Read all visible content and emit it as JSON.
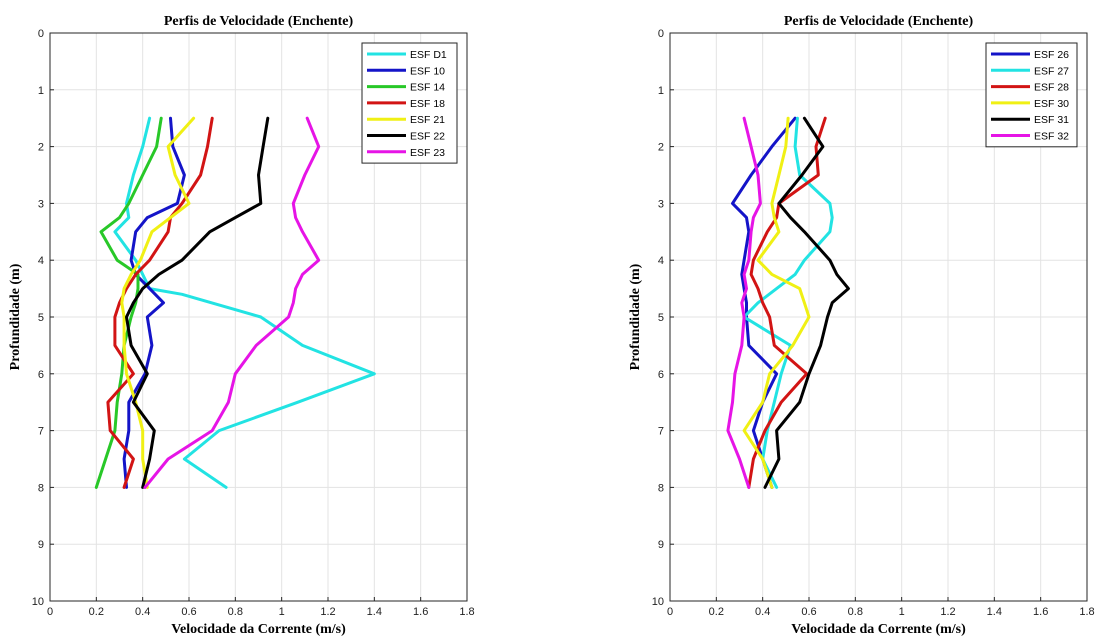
{
  "chart_data": [
    {
      "type": "line",
      "title": "Perfis de Velocidade (Enchente)",
      "xlabel": "Velocidade da Corrente (m/s)",
      "ylabel": "Profundidade (m)",
      "xlim": [
        0,
        1.8
      ],
      "ylim": [
        0,
        10
      ],
      "y_reversed": true,
      "xticks": [
        "0",
        "0.2",
        "0.4",
        "0.6",
        "0.8",
        "1",
        "1.2",
        "1.4",
        "1.6",
        "1.8"
      ],
      "yticks": [
        "0",
        "1",
        "2",
        "3",
        "4",
        "5",
        "6",
        "7",
        "8",
        "9",
        "10"
      ],
      "grid": true,
      "legend_position": "top-right",
      "series": [
        {
          "name": "ESF D1",
          "color": "#22e3e3",
          "x": [
            0.43,
            0.4,
            0.36,
            0.33,
            0.34,
            0.28,
            0.37,
            0.4,
            0.43,
            0.57,
            0.91,
            1.09,
            1.4,
            1.07,
            0.73,
            0.58,
            0.76
          ],
          "y": [
            1.5,
            2.0,
            2.5,
            3.0,
            3.25,
            3.5,
            4.0,
            4.25,
            4.5,
            4.6,
            5.0,
            5.5,
            6.0,
            6.5,
            7.0,
            7.5,
            8.0
          ]
        },
        {
          "name": "ESF 10",
          "color": "#1414c8",
          "x": [
            0.52,
            0.53,
            0.58,
            0.55,
            0.42,
            0.37,
            0.35,
            0.37,
            0.43,
            0.49,
            0.42,
            0.44,
            0.41,
            0.34,
            0.34,
            0.32,
            0.33
          ],
          "y": [
            1.5,
            2.0,
            2.5,
            3.0,
            3.25,
            3.5,
            4.0,
            4.25,
            4.5,
            4.75,
            5.0,
            5.5,
            6.0,
            6.5,
            7.0,
            7.5,
            8.0
          ]
        },
        {
          "name": "ESF 14",
          "color": "#28c828",
          "x": [
            0.48,
            0.46,
            0.4,
            0.34,
            0.3,
            0.22,
            0.29,
            0.38,
            0.38,
            0.37,
            0.35,
            0.32,
            0.31,
            0.29,
            0.28,
            0.24,
            0.2
          ],
          "y": [
            1.5,
            2.0,
            2.5,
            3.0,
            3.25,
            3.5,
            4.0,
            4.25,
            4.5,
            4.75,
            5.0,
            5.5,
            6.0,
            6.5,
            7.0,
            7.5,
            8.0
          ]
        },
        {
          "name": "ESF 18",
          "color": "#d21414",
          "x": [
            0.7,
            0.68,
            0.65,
            0.57,
            0.52,
            0.51,
            0.43,
            0.37,
            0.33,
            0.3,
            0.28,
            0.28,
            0.36,
            0.25,
            0.26,
            0.36,
            0.32
          ],
          "y": [
            1.5,
            2.0,
            2.5,
            3.0,
            3.25,
            3.5,
            4.0,
            4.25,
            4.5,
            4.75,
            5.0,
            5.5,
            6.0,
            6.5,
            7.0,
            7.5,
            8.0
          ]
        },
        {
          "name": "ESF 21",
          "color": "#f0f014",
          "x": [
            0.62,
            0.51,
            0.54,
            0.6,
            0.52,
            0.44,
            0.39,
            0.35,
            0.32,
            0.31,
            0.32,
            0.32,
            0.33,
            0.37,
            0.4,
            0.4,
            0.42
          ],
          "y": [
            1.5,
            2.0,
            2.5,
            3.0,
            3.25,
            3.5,
            4.0,
            4.25,
            4.5,
            4.75,
            5.0,
            5.5,
            6.0,
            6.5,
            7.0,
            7.5,
            8.0
          ]
        },
        {
          "name": "ESF 22",
          "color": "#000000",
          "x": [
            0.94,
            0.92,
            0.9,
            0.91,
            0.8,
            0.69,
            0.57,
            0.47,
            0.4,
            0.36,
            0.33,
            0.35,
            0.42,
            0.36,
            0.45,
            0.43,
            0.4
          ],
          "y": [
            1.5,
            2.0,
            2.5,
            3.0,
            3.25,
            3.5,
            4.0,
            4.25,
            4.5,
            4.75,
            5.0,
            5.5,
            6.0,
            6.5,
            7.0,
            7.5,
            8.0
          ]
        },
        {
          "name": "ESF 23",
          "color": "#e614e6",
          "x": [
            1.11,
            1.16,
            1.1,
            1.05,
            1.06,
            1.09,
            1.16,
            1.09,
            1.06,
            1.05,
            1.03,
            0.89,
            0.8,
            0.77,
            0.7,
            0.51,
            0.41
          ],
          "y": [
            1.5,
            2.0,
            2.5,
            3.0,
            3.25,
            3.5,
            4.0,
            4.25,
            4.5,
            4.75,
            5.0,
            5.5,
            6.0,
            6.5,
            7.0,
            7.5,
            8.0
          ]
        }
      ]
    },
    {
      "type": "line",
      "title": "Perfis de Velocidade (Enchente)",
      "xlabel": "Velocidade da Corrente (m/s)",
      "ylabel": "Profundidade (m)",
      "xlim": [
        0,
        1.8
      ],
      "ylim": [
        0,
        10
      ],
      "y_reversed": true,
      "xticks": [
        "0",
        "0.2",
        "0.4",
        "0.6",
        "0.8",
        "1",
        "1.2",
        "1.4",
        "1.6",
        "1.8"
      ],
      "yticks": [
        "0",
        "1",
        "2",
        "3",
        "4",
        "5",
        "6",
        "7",
        "8",
        "9",
        "10"
      ],
      "grid": true,
      "legend_position": "top-right",
      "series": [
        {
          "name": "ESF 26",
          "color": "#1414c8",
          "x": [
            0.54,
            0.44,
            0.35,
            0.27,
            0.33,
            0.34,
            0.32,
            0.31,
            0.32,
            0.33,
            0.33,
            0.34,
            0.46,
            0.4,
            0.36,
            0.4,
            0.44
          ],
          "y": [
            1.5,
            2.0,
            2.5,
            3.0,
            3.25,
            3.5,
            4.0,
            4.25,
            4.5,
            4.75,
            5.0,
            5.5,
            6.0,
            6.5,
            7.0,
            7.5,
            8.0
          ]
        },
        {
          "name": "ESF 27",
          "color": "#22e3e3",
          "x": [
            0.55,
            0.54,
            0.56,
            0.69,
            0.7,
            0.69,
            0.58,
            0.54,
            0.46,
            0.38,
            0.32,
            0.52,
            0.48,
            0.45,
            0.42,
            0.4,
            0.46
          ],
          "y": [
            1.5,
            2.0,
            2.5,
            3.0,
            3.25,
            3.5,
            4.0,
            4.25,
            4.5,
            4.75,
            5.0,
            5.5,
            6.0,
            6.5,
            7.0,
            7.5,
            8.0
          ]
        },
        {
          "name": "ESF 28",
          "color": "#d21414",
          "x": [
            0.67,
            0.63,
            0.64,
            0.47,
            0.46,
            0.42,
            0.36,
            0.35,
            0.38,
            0.4,
            0.43,
            0.45,
            0.59,
            0.48,
            0.41,
            0.36,
            0.34
          ],
          "y": [
            1.5,
            2.0,
            2.5,
            3.0,
            3.25,
            3.5,
            4.0,
            4.25,
            4.5,
            4.75,
            5.0,
            5.5,
            6.0,
            6.5,
            7.0,
            7.5,
            8.0
          ]
        },
        {
          "name": "ESF 30",
          "color": "#f0f014",
          "x": [
            0.51,
            0.5,
            0.47,
            0.44,
            0.45,
            0.47,
            0.38,
            0.44,
            0.56,
            0.58,
            0.6,
            0.53,
            0.43,
            0.4,
            0.32,
            0.4,
            0.44
          ],
          "y": [
            1.5,
            2.0,
            2.5,
            3.0,
            3.25,
            3.5,
            4.0,
            4.25,
            4.5,
            4.75,
            5.0,
            5.5,
            6.0,
            6.5,
            7.0,
            7.5,
            8.0
          ]
        },
        {
          "name": "ESF 31",
          "color": "#000000",
          "x": [
            0.58,
            0.66,
            0.57,
            0.47,
            0.52,
            0.58,
            0.69,
            0.72,
            0.77,
            0.7,
            0.68,
            0.65,
            0.6,
            0.56,
            0.46,
            0.47,
            0.41
          ],
          "y": [
            1.5,
            2.0,
            2.5,
            3.0,
            3.25,
            3.5,
            4.0,
            4.25,
            4.5,
            4.75,
            5.0,
            5.5,
            6.0,
            6.5,
            7.0,
            7.5,
            8.0
          ]
        },
        {
          "name": "ESF 32",
          "color": "#e614e6",
          "x": [
            0.32,
            0.35,
            0.38,
            0.39,
            0.36,
            0.35,
            0.34,
            0.32,
            0.33,
            0.31,
            0.32,
            0.31,
            0.28,
            0.27,
            0.25,
            0.3,
            0.34
          ],
          "y": [
            1.5,
            2.0,
            2.5,
            3.0,
            3.25,
            3.5,
            4.0,
            4.25,
            4.5,
            4.75,
            5.0,
            5.5,
            6.0,
            6.5,
            7.0,
            7.5,
            8.0
          ]
        }
      ]
    }
  ]
}
